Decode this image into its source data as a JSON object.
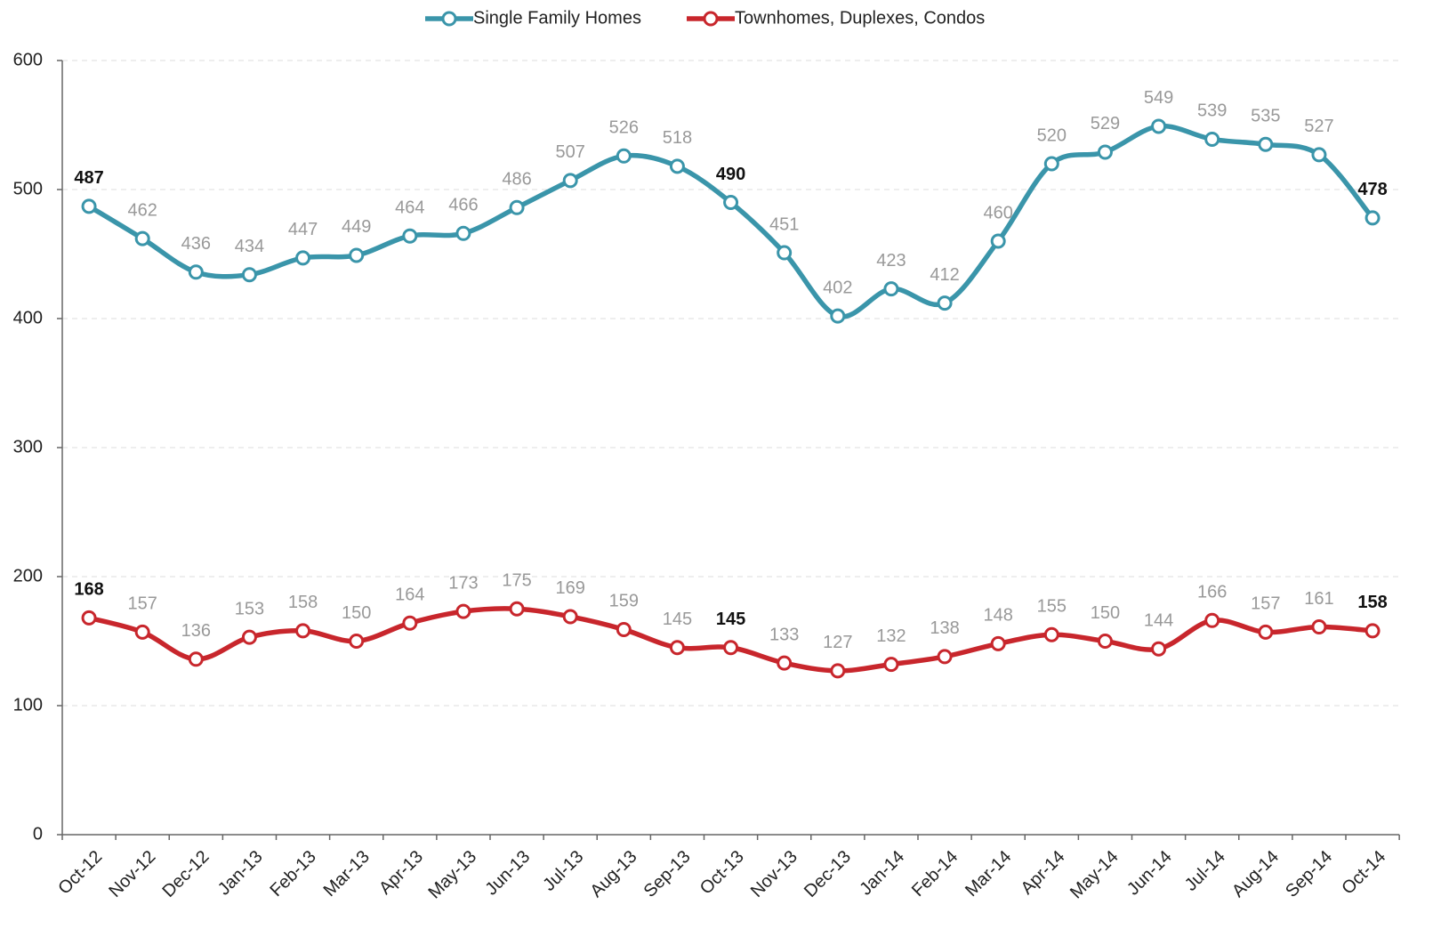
{
  "chart_data": {
    "type": "line",
    "categories": [
      "Oct-12",
      "Nov-12",
      "Dec-12",
      "Jan-13",
      "Feb-13",
      "Mar-13",
      "Apr-13",
      "May-13",
      "Jun-13",
      "Jul-13",
      "Aug-13",
      "Sep-13",
      "Oct-13",
      "Nov-13",
      "Dec-13",
      "Jan-14",
      "Feb-14",
      "Mar-14",
      "Apr-14",
      "May-14",
      "Jun-14",
      "Jul-14",
      "Aug-14",
      "Sep-14",
      "Oct-14"
    ],
    "series": [
      {
        "name": "Single Family Homes",
        "color": "#3a95aa",
        "values": [
          487,
          462,
          436,
          434,
          447,
          449,
          464,
          466,
          486,
          507,
          526,
          518,
          490,
          451,
          402,
          423,
          412,
          460,
          520,
          529,
          549,
          539,
          535,
          527,
          478
        ]
      },
      {
        "name": "Townhomes, Duplexes, Condos",
        "color": "#c8262c",
        "values": [
          168,
          157,
          136,
          153,
          158,
          150,
          164,
          173,
          175,
          169,
          159,
          145,
          145,
          133,
          127,
          132,
          138,
          148,
          155,
          150,
          144,
          166,
          157,
          161,
          158
        ]
      }
    ],
    "ylim": [
      0,
      600
    ],
    "yticks": [
      0,
      100,
      200,
      300,
      400,
      500,
      600
    ],
    "grid": true,
    "legend": "top",
    "bold_points": [
      0,
      12,
      24
    ]
  }
}
